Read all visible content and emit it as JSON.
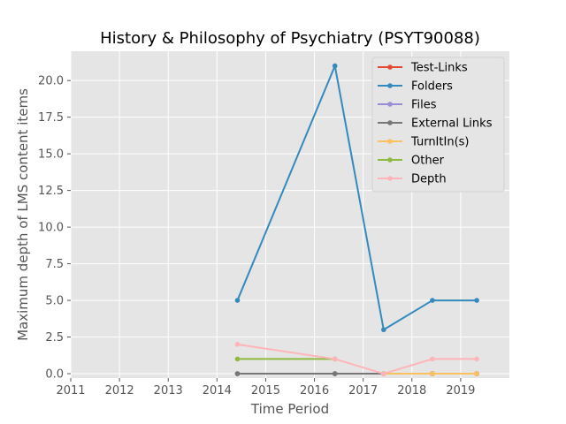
{
  "chart_data": {
    "type": "line",
    "title": "History & Philosophy of Psychiatry (PSYT90088)",
    "xlabel": "Time Period",
    "ylabel": "Maximum depth of LMS content items",
    "xlim": [
      2011,
      2020
    ],
    "ylim": [
      -0.3,
      22.0
    ],
    "xticks": [
      "2011",
      "2012",
      "2013",
      "2014",
      "2015",
      "2016",
      "2017",
      "2018",
      "2019"
    ],
    "yticks": [
      "0.0",
      "2.5",
      "5.0",
      "7.5",
      "10.0",
      "12.5",
      "15.0",
      "17.5",
      "20.0"
    ],
    "grid": true,
    "legend_position": "top-right",
    "x": [
      2014.42,
      2016.42,
      2017.42,
      2018.42,
      2019.33
    ],
    "series": [
      {
        "name": "Test-Links",
        "color": "#e24a33",
        "values": [
          0,
          0,
          0,
          0,
          0
        ]
      },
      {
        "name": "Folders",
        "color": "#348abd",
        "values": [
          5,
          21,
          3,
          5,
          5
        ]
      },
      {
        "name": "Files",
        "color": "#988ed5",
        "values": [
          0,
          0,
          0,
          0,
          0
        ]
      },
      {
        "name": "External Links",
        "color": "#777777",
        "values": [
          0,
          0,
          0,
          0,
          0
        ]
      },
      {
        "name": "TurnItIn(s)",
        "color": "#fbc15e",
        "values": [
          null,
          null,
          0,
          0,
          0
        ]
      },
      {
        "name": "Other",
        "color": "#8eba42",
        "values": [
          1,
          1,
          null,
          null,
          null
        ]
      },
      {
        "name": "Depth",
        "color": "#ffb5b8",
        "values": [
          2,
          1,
          0,
          1,
          1
        ]
      }
    ]
  }
}
